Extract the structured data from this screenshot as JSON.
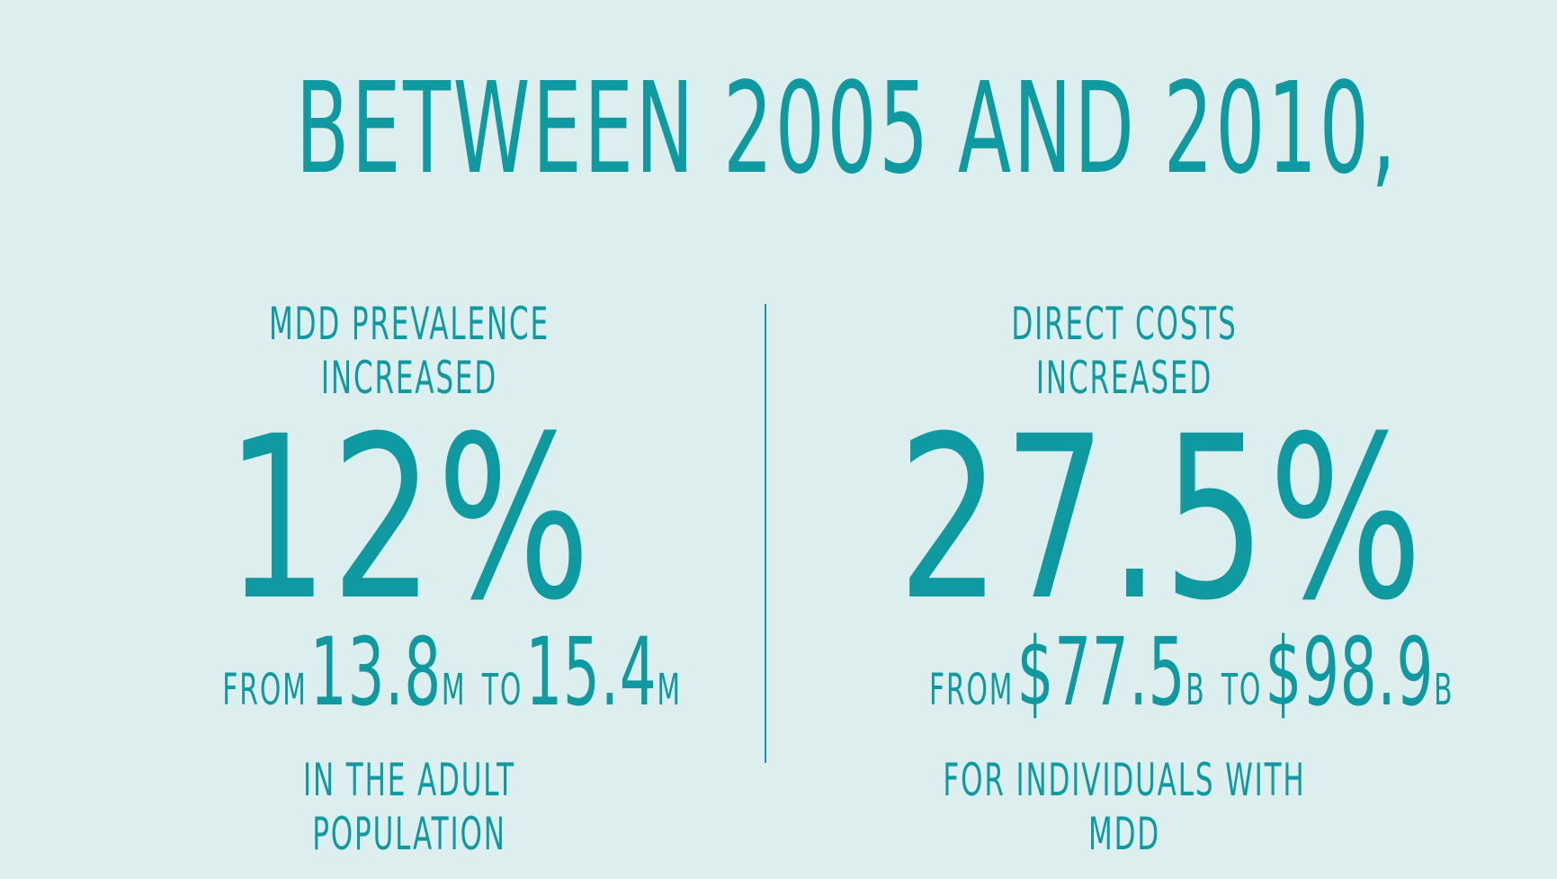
{
  "headline": "BETWEEN 2005 AND 2010,",
  "colors": {
    "background": "#ddeeee",
    "accent": "#0e9aa0"
  },
  "left": {
    "label": "MDD PREVALENCE INCREASED",
    "value": "12%",
    "from_word": "FROM",
    "from_value": "13.8",
    "from_unit": "M",
    "to_word": "TO",
    "to_value": "15.4",
    "to_unit": "M",
    "caption": "IN THE ADULT POPULATION"
  },
  "right": {
    "label": "DIRECT COSTS INCREASED",
    "value": "27.5%",
    "from_word": "FROM",
    "from_value": "$77.5",
    "from_unit": "B",
    "to_word": "TO",
    "to_value": "$98.9",
    "to_unit": "B",
    "caption": "FOR INDIVIDUALS WITH MDD"
  }
}
